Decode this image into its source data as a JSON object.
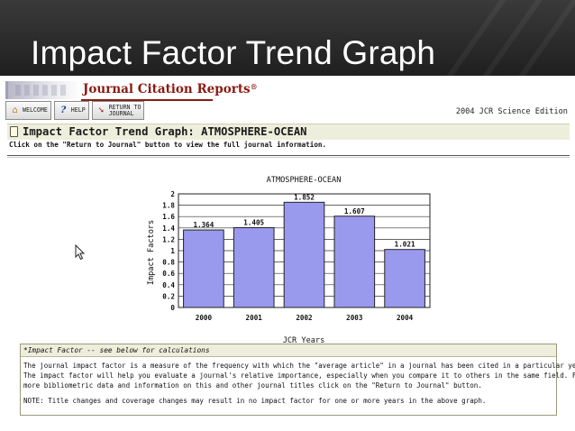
{
  "slide": {
    "title": "Impact Factor Trend Graph"
  },
  "banner": {
    "title": "Journal Citation Reports",
    "reg": "®"
  },
  "toolbar": {
    "welcome": "WELCOME",
    "help": "HELP",
    "return_line1": "RETURN TO",
    "return_line2": "JOURNAL"
  },
  "edition": "2004 JCR Science Edition",
  "page": {
    "title": "Impact Factor Trend Graph: ATMOSPHERE-OCEAN",
    "instruction": "Click on the \"Return to Journal\" button to view the full journal information."
  },
  "chart_data": {
    "type": "bar",
    "title": "ATMOSPHERE-OCEAN",
    "xlabel": "JCR Years",
    "ylabel": "Impact Factors",
    "categories": [
      "2000",
      "2001",
      "2002",
      "2003",
      "2004"
    ],
    "values": [
      1.364,
      1.405,
      1.852,
      1.607,
      1.021
    ],
    "value_labels": [
      "1.364",
      "1.405",
      "1.852",
      "1.607",
      "1.021"
    ],
    "ylim": [
      0,
      2
    ],
    "yticks": [
      "0",
      "0.2",
      "0.4",
      "0.6",
      "0.8",
      "1",
      "1.2",
      "1.4",
      "1.6",
      "1.8",
      "2"
    ],
    "grid": true,
    "bar_color": "#9999ee"
  },
  "notes": {
    "header": "*Impact Factor -- see below for calculations",
    "lines": [
      "The journal impact factor is a measure of the frequency with which the \"average article\" in a journal has been cited in a particular year.",
      "The impact factor will help you evaluate a journal's relative importance, especially when you compare it to others in the same field. For",
      "more bibliometric data and information on this and other journal titles click on the \"Return to Journal\" button."
    ],
    "note": "NOTE: Title changes and coverage changes may result in no impact factor for one or more years in the above graph."
  }
}
